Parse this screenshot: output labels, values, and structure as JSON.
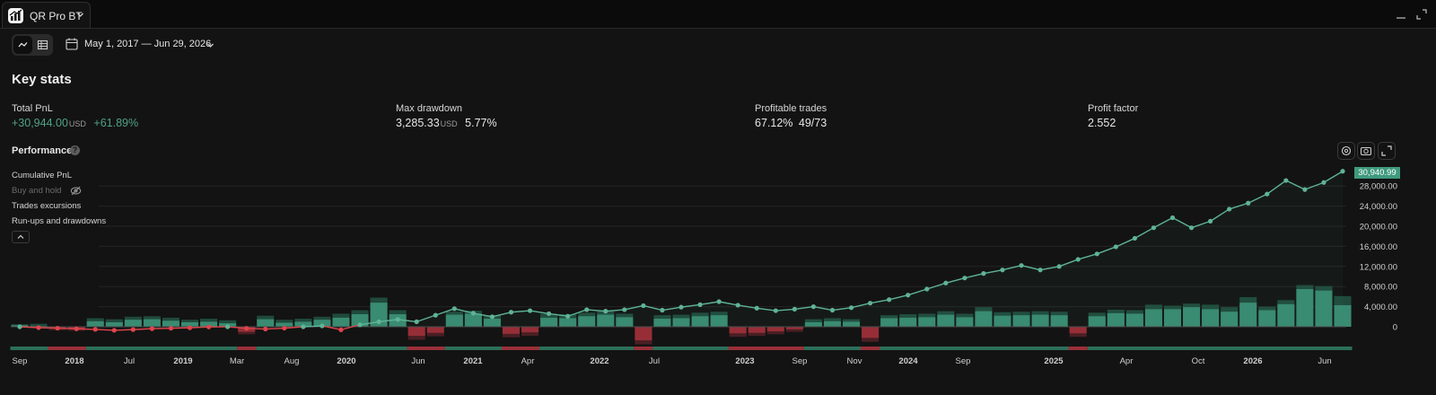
{
  "tabbar": {
    "title": "QR Pro BT"
  },
  "toolbar": {
    "date_range": "May 1, 2017 — Jun 29, 2026"
  },
  "key_stats": {
    "title": "Key stats",
    "total_pnl": {
      "label": "Total PnL",
      "value": "+30,944.00",
      "unit": "USD",
      "percent": "+61.89%"
    },
    "max_drawdown": {
      "label": "Max drawdown",
      "value": "3,285.33",
      "unit": "USD",
      "percent": "5.77%"
    },
    "profitable_trades": {
      "label": "Profitable trades",
      "percent": "67.12%",
      "ratio": "49/73"
    },
    "profit_factor": {
      "label": "Profit factor",
      "value": "2.552"
    }
  },
  "performance": {
    "title": "Performance",
    "help": "?",
    "legend": [
      "Cumulative PnL",
      "Buy and hold",
      "Trades excursions",
      "Run-ups and drawdowns"
    ],
    "last_value": "30,940.99"
  },
  "colors": {
    "profit": "#3f9a7d",
    "loss": "#a8323c",
    "line_negative": "#e0444c",
    "background": "#131313"
  },
  "icons": {
    "logo": "chart-bars-logo-icon",
    "view_chart": "line-chart-icon",
    "view_table": "table-icon",
    "date": "calendar-icon",
    "settings": "gear-icon",
    "snapshot": "camera-icon",
    "fullscreen": "expand-icon",
    "visibility": "eye-off-icon"
  },
  "chart_data": {
    "type": "line",
    "ylabel": "",
    "ylim": [
      -3000,
      32000
    ],
    "y_ticks": [
      "28,000.00",
      "24,000.00",
      "20,000.00",
      "16,000.00",
      "12,000.00",
      "8,000.00",
      "4,000.00",
      "0"
    ],
    "x_ticks": [
      "Sep",
      "2018",
      "Jul",
      "2019",
      "Mar",
      "Aug",
      "2020",
      "Jun",
      "2021",
      "Apr",
      "2022",
      "Jul",
      "2023",
      "Sep",
      "Nov",
      "2024",
      "Sep",
      "2025",
      "Apr",
      "Oct",
      "2026",
      "Jun"
    ],
    "grid": true,
    "series": [
      {
        "name": "Cumulative PnL",
        "values": [
          0,
          -180,
          -280,
          -400,
          -520,
          -700,
          -560,
          -380,
          -300,
          -200,
          -40,
          0,
          -300,
          -450,
          -280,
          0,
          180,
          -600,
          400,
          1000,
          1450,
          1000,
          2300,
          3600,
          2700,
          2000,
          2900,
          3200,
          2600,
          2100,
          3400,
          3100,
          3400,
          4200,
          3300,
          3900,
          4400,
          5000,
          4300,
          3700,
          3200,
          3500,
          4000,
          3300,
          3800,
          4700,
          5400,
          6300,
          7500,
          8700,
          9700,
          10600,
          11300,
          12200,
          11300,
          12000,
          13400,
          14500,
          15900,
          17600,
          19700,
          21700,
          19700,
          21000,
          23400,
          24600,
          26400,
          29100,
          27300,
          28700,
          30941
        ]
      },
      {
        "name": "Trades excursions",
        "values": [
          300,
          150,
          -250,
          -400,
          1100,
          900,
          1400,
          1500,
          1200,
          900,
          1000,
          700,
          -1000,
          1500,
          800,
          1000,
          1400,
          1800,
          2500,
          4800,
          2500,
          -1800,
          -1200,
          2400,
          2600,
          1600,
          -1400,
          -1100,
          1800,
          1700,
          2100,
          2400,
          1900,
          -2700,
          1600,
          1700,
          2100,
          2300,
          -1300,
          -1200,
          -900,
          -500,
          900,
          1100,
          1000,
          -2200,
          1700,
          1800,
          1900,
          2400,
          1900,
          3100,
          2200,
          2300,
          2400,
          2300,
          -1300,
          2100,
          2700,
          2600,
          3500,
          3500,
          3900,
          3500,
          3000,
          4800,
          3300,
          4500,
          7500,
          7200,
          4300
        ]
      },
      {
        "name": "Run-ups and drawdowns",
        "values": [
          500,
          600,
          -700,
          -800,
          1700,
          1500,
          2000,
          2100,
          1800,
          1400,
          1600,
          1300,
          -1500,
          2200,
          1400,
          1600,
          2000,
          2600,
          3300,
          5800,
          3300,
          -2600,
          -1900,
          3000,
          3200,
          2300,
          -2100,
          -1800,
          2600,
          2500,
          2800,
          3100,
          2600,
          -3500,
          2300,
          2400,
          2800,
          3000,
          -2000,
          -1800,
          -1500,
          -1000,
          1500,
          1700,
          1500,
          -3000,
          2300,
          2500,
          2600,
          3100,
          2600,
          3900,
          2900,
          3000,
          3100,
          3000,
          -2000,
          2800,
          3400,
          3300,
          4400,
          4200,
          4600,
          4400,
          3900,
          5900,
          4000,
          5300,
          8300,
          8100,
          6100
        ]
      }
    ]
  }
}
